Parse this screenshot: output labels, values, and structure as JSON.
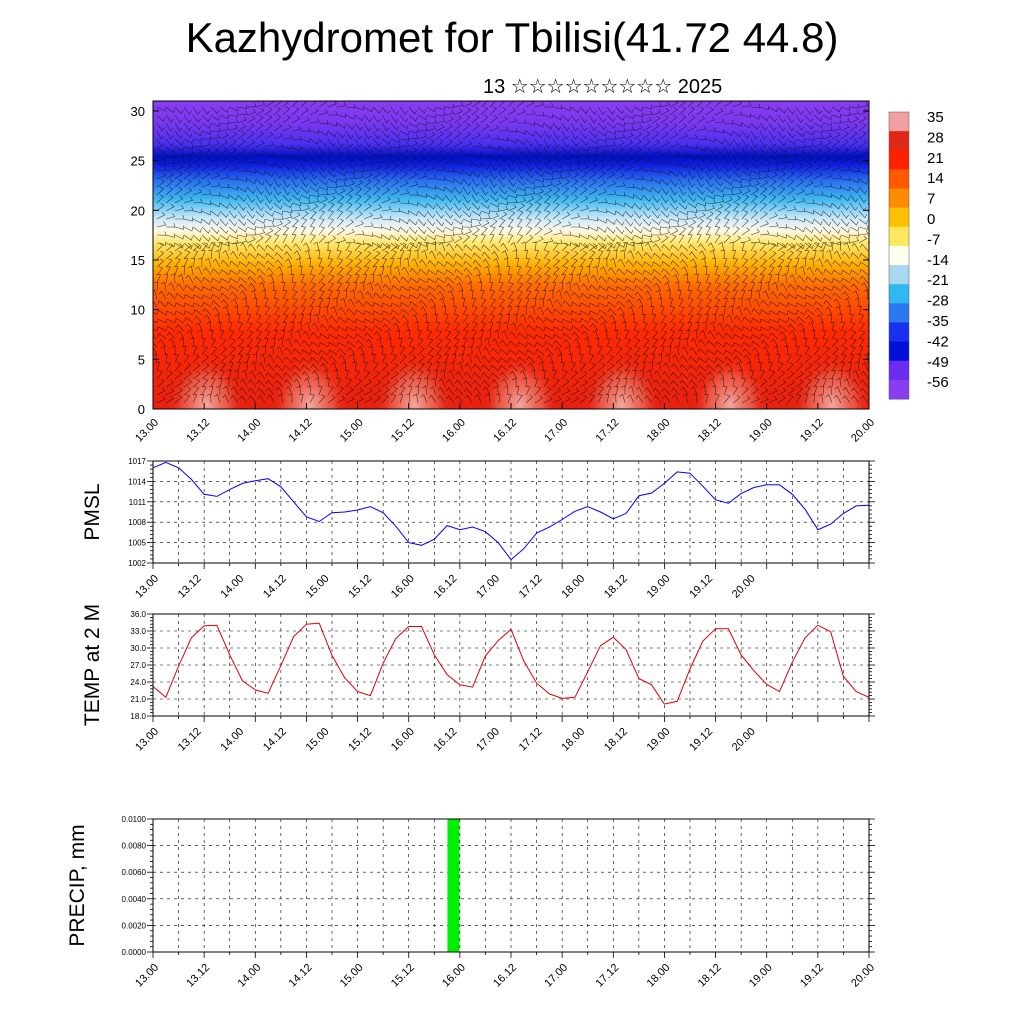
{
  "title": "Kazhydromet for Tbilisi(41.72 44.8)",
  "subtitle": "13 ☆☆☆☆☆☆☆☆☆ 2025",
  "chart_data": [
    {
      "id": "cross-section",
      "type": "heatmap",
      "ylim": [
        0,
        31
      ],
      "yticks": [
        0,
        5,
        10,
        15,
        20,
        25,
        30
      ],
      "xticks": [
        "13.00",
        "13.12",
        "14.00",
        "14.12",
        "15.00",
        "15.12",
        "16.00",
        "16.12",
        "17.00",
        "17.12",
        "18.00",
        "18.12",
        "19.00",
        "19.12",
        "20.00"
      ],
      "colorbar_labels": [
        "35",
        "28",
        "21",
        "14",
        "7",
        "0",
        "-7",
        "-14",
        "-21",
        "-28",
        "-35",
        "-42",
        "-49",
        "-56"
      ],
      "colorbar_colors": [
        "#f0a0a0",
        "#e02818",
        "#ff2200",
        "#ff5a00",
        "#ff8c00",
        "#ffc000",
        "#ffe860",
        "#fffff0",
        "#a8d8f0",
        "#30b8f0",
        "#2c78f0",
        "#1830f0",
        "#0010d8",
        "#6a2cf0",
        "#8a3cf0"
      ]
    },
    {
      "id": "pmsl",
      "type": "line",
      "ylabel": "PMSL",
      "ylim": [
        1002,
        1017
      ],
      "yticks": [
        "1017",
        "1014",
        "1011",
        "1008",
        "1005",
        "1002"
      ],
      "xticks": [
        "13.00",
        "13.12",
        "14.00",
        "14.12",
        "15.00",
        "15.12",
        "16.00",
        "16.12",
        "17.00",
        "17.12",
        "18.00",
        "18.12",
        "19.00",
        "19.12",
        "20.00"
      ],
      "color": "#0000ff",
      "x": [
        0,
        3,
        6,
        9,
        12,
        15,
        18,
        21,
        24,
        27,
        30,
        33,
        36,
        39,
        42,
        45,
        48,
        51,
        54,
        57,
        60,
        63,
        66,
        69,
        72,
        75,
        78,
        81,
        84,
        87,
        90,
        93,
        96,
        99,
        102,
        105,
        108,
        111,
        114,
        117,
        120,
        123,
        126,
        129,
        132,
        135,
        138,
        141,
        144,
        147,
        150,
        153,
        156,
        159,
        162,
        165,
        168
      ],
      "values": [
        1016.0,
        1016.8,
        1016.0,
        1014.3,
        1012.1,
        1011.8,
        1012.8,
        1013.7,
        1014.1,
        1014.4,
        1013.2,
        1011.0,
        1008.8,
        1008.1,
        1009.4,
        1009.5,
        1009.8,
        1010.3,
        1009.4,
        1007.4,
        1005.0,
        1004.6,
        1005.5,
        1007.5,
        1006.9,
        1007.3,
        1006.6,
        1005.0,
        1002.5,
        1004.1,
        1006.4,
        1007.3,
        1008.4,
        1009.6,
        1010.3,
        1009.5,
        1008.5,
        1009.3,
        1011.9,
        1012.3,
        1013.7,
        1015.4,
        1015.2,
        1013.3,
        1011.3,
        1010.8,
        1012.2,
        1013.1,
        1013.5,
        1013.5,
        1012.1,
        1009.9,
        1006.9,
        1007.7,
        1009.3,
        1010.4,
        1010.5
      ]
    },
    {
      "id": "temp2m",
      "type": "line",
      "ylabel": "TEMP at 2 M",
      "ylim": [
        18,
        36
      ],
      "yticks": [
        "36.0",
        "33.0",
        "30.0",
        "27.0",
        "24.0",
        "21.0",
        "18.0"
      ],
      "xticks": [
        "13.00",
        "13.12",
        "14.00",
        "14.12",
        "15.00",
        "15.12",
        "16.00",
        "16.12",
        "17.00",
        "17.12",
        "18.00",
        "18.12",
        "19.00",
        "19.12",
        "20.00"
      ],
      "color": "#e00000",
      "x": [
        0,
        3,
        6,
        9,
        12,
        15,
        18,
        21,
        24,
        27,
        30,
        33,
        36,
        39,
        42,
        45,
        48,
        51,
        54,
        57,
        60,
        63,
        66,
        69,
        72,
        75,
        78,
        81,
        84,
        87,
        90,
        93,
        96,
        99,
        102,
        105,
        108,
        111,
        114,
        117,
        120,
        123,
        126,
        129,
        132,
        135,
        138,
        141,
        144,
        147,
        150,
        153,
        156,
        159,
        162,
        165,
        168
      ],
      "values": [
        23.2,
        21.3,
        26.8,
        31.8,
        33.9,
        34.0,
        28.8,
        24.2,
        22.6,
        22.0,
        26.9,
        32.0,
        34.2,
        34.4,
        28.7,
        24.7,
        22.3,
        21.6,
        27.3,
        31.7,
        33.8,
        33.8,
        28.8,
        25.3,
        23.5,
        23.1,
        28.6,
        31.3,
        33.3,
        27.7,
        23.8,
        21.9,
        21.1,
        21.3,
        25.8,
        30.4,
        31.9,
        29.7,
        24.6,
        23.5,
        20.1,
        20.6,
        26.3,
        31.2,
        33.4,
        33.4,
        28.8,
        26.0,
        23.6,
        22.3,
        27.5,
        31.8,
        34.0,
        32.9,
        25.0,
        22.3,
        21.3
      ]
    },
    {
      "id": "precip",
      "type": "bar",
      "ylabel": "PRECIP, mm",
      "ylim": [
        0,
        0.01
      ],
      "yticks": [
        "0.0100",
        "0.0080",
        "0.0060",
        "0.0040",
        "0.0020",
        "0.0000"
      ],
      "xticks": [
        "13.00",
        "13.12",
        "14.00",
        "14.12",
        "15.00",
        "15.12",
        "16.00",
        "16.12",
        "17.00",
        "17.12",
        "18.00",
        "18.12",
        "19.00",
        "19.12",
        "20.00"
      ],
      "color": "#00ee00",
      "x": [
        70.5
      ],
      "values": [
        0.01
      ]
    }
  ]
}
